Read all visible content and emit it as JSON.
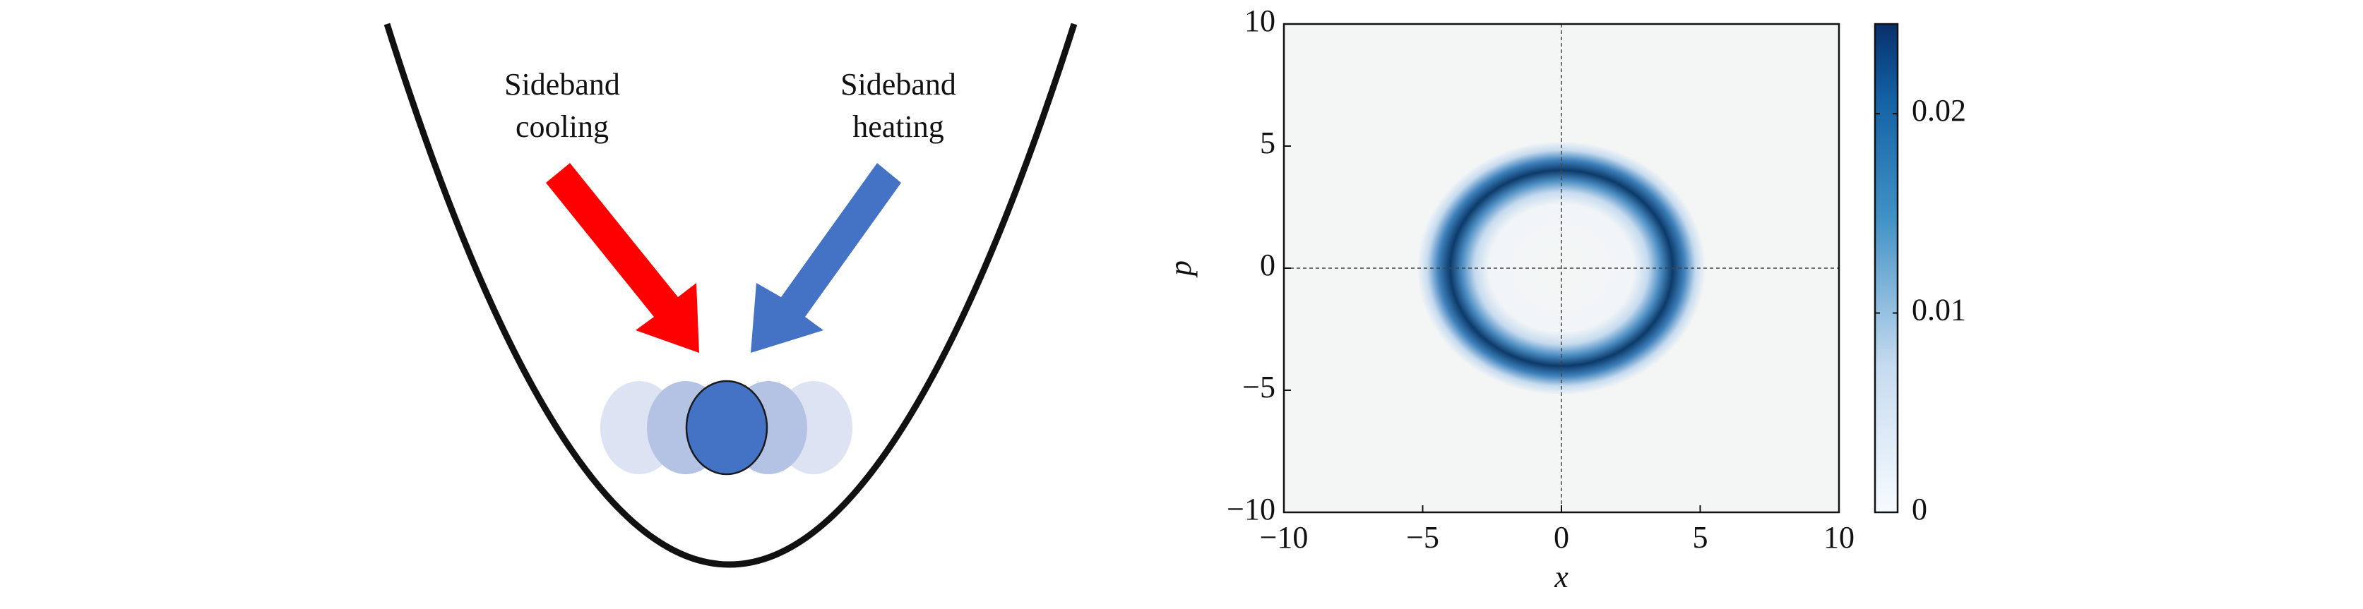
{
  "diagram": {
    "labels": [
      [
        "Sideband",
        "cooling"
      ],
      [
        "Sideband",
        "heating"
      ]
    ]
  },
  "chart_data": {
    "type": "heatmap",
    "xlabel": "x",
    "ylabel": "p",
    "xlim": [
      -10,
      10
    ],
    "ylim": [
      -10,
      10
    ],
    "xticks": [
      {
        "value": -10,
        "label": "−10"
      },
      {
        "value": -5,
        "label": "−5"
      },
      0,
      5,
      10
    ],
    "yticks": [
      {
        "value": -10,
        "label": "−10"
      },
      {
        "value": -5,
        "label": "−5"
      },
      0,
      5,
      10
    ],
    "ring": {
      "center": [
        0,
        0
      ],
      "radius": 4,
      "peak": 0.0245
    },
    "clim": [
      0,
      0.0245
    ],
    "cticks": [
      0,
      0.01,
      0.02
    ]
  }
}
